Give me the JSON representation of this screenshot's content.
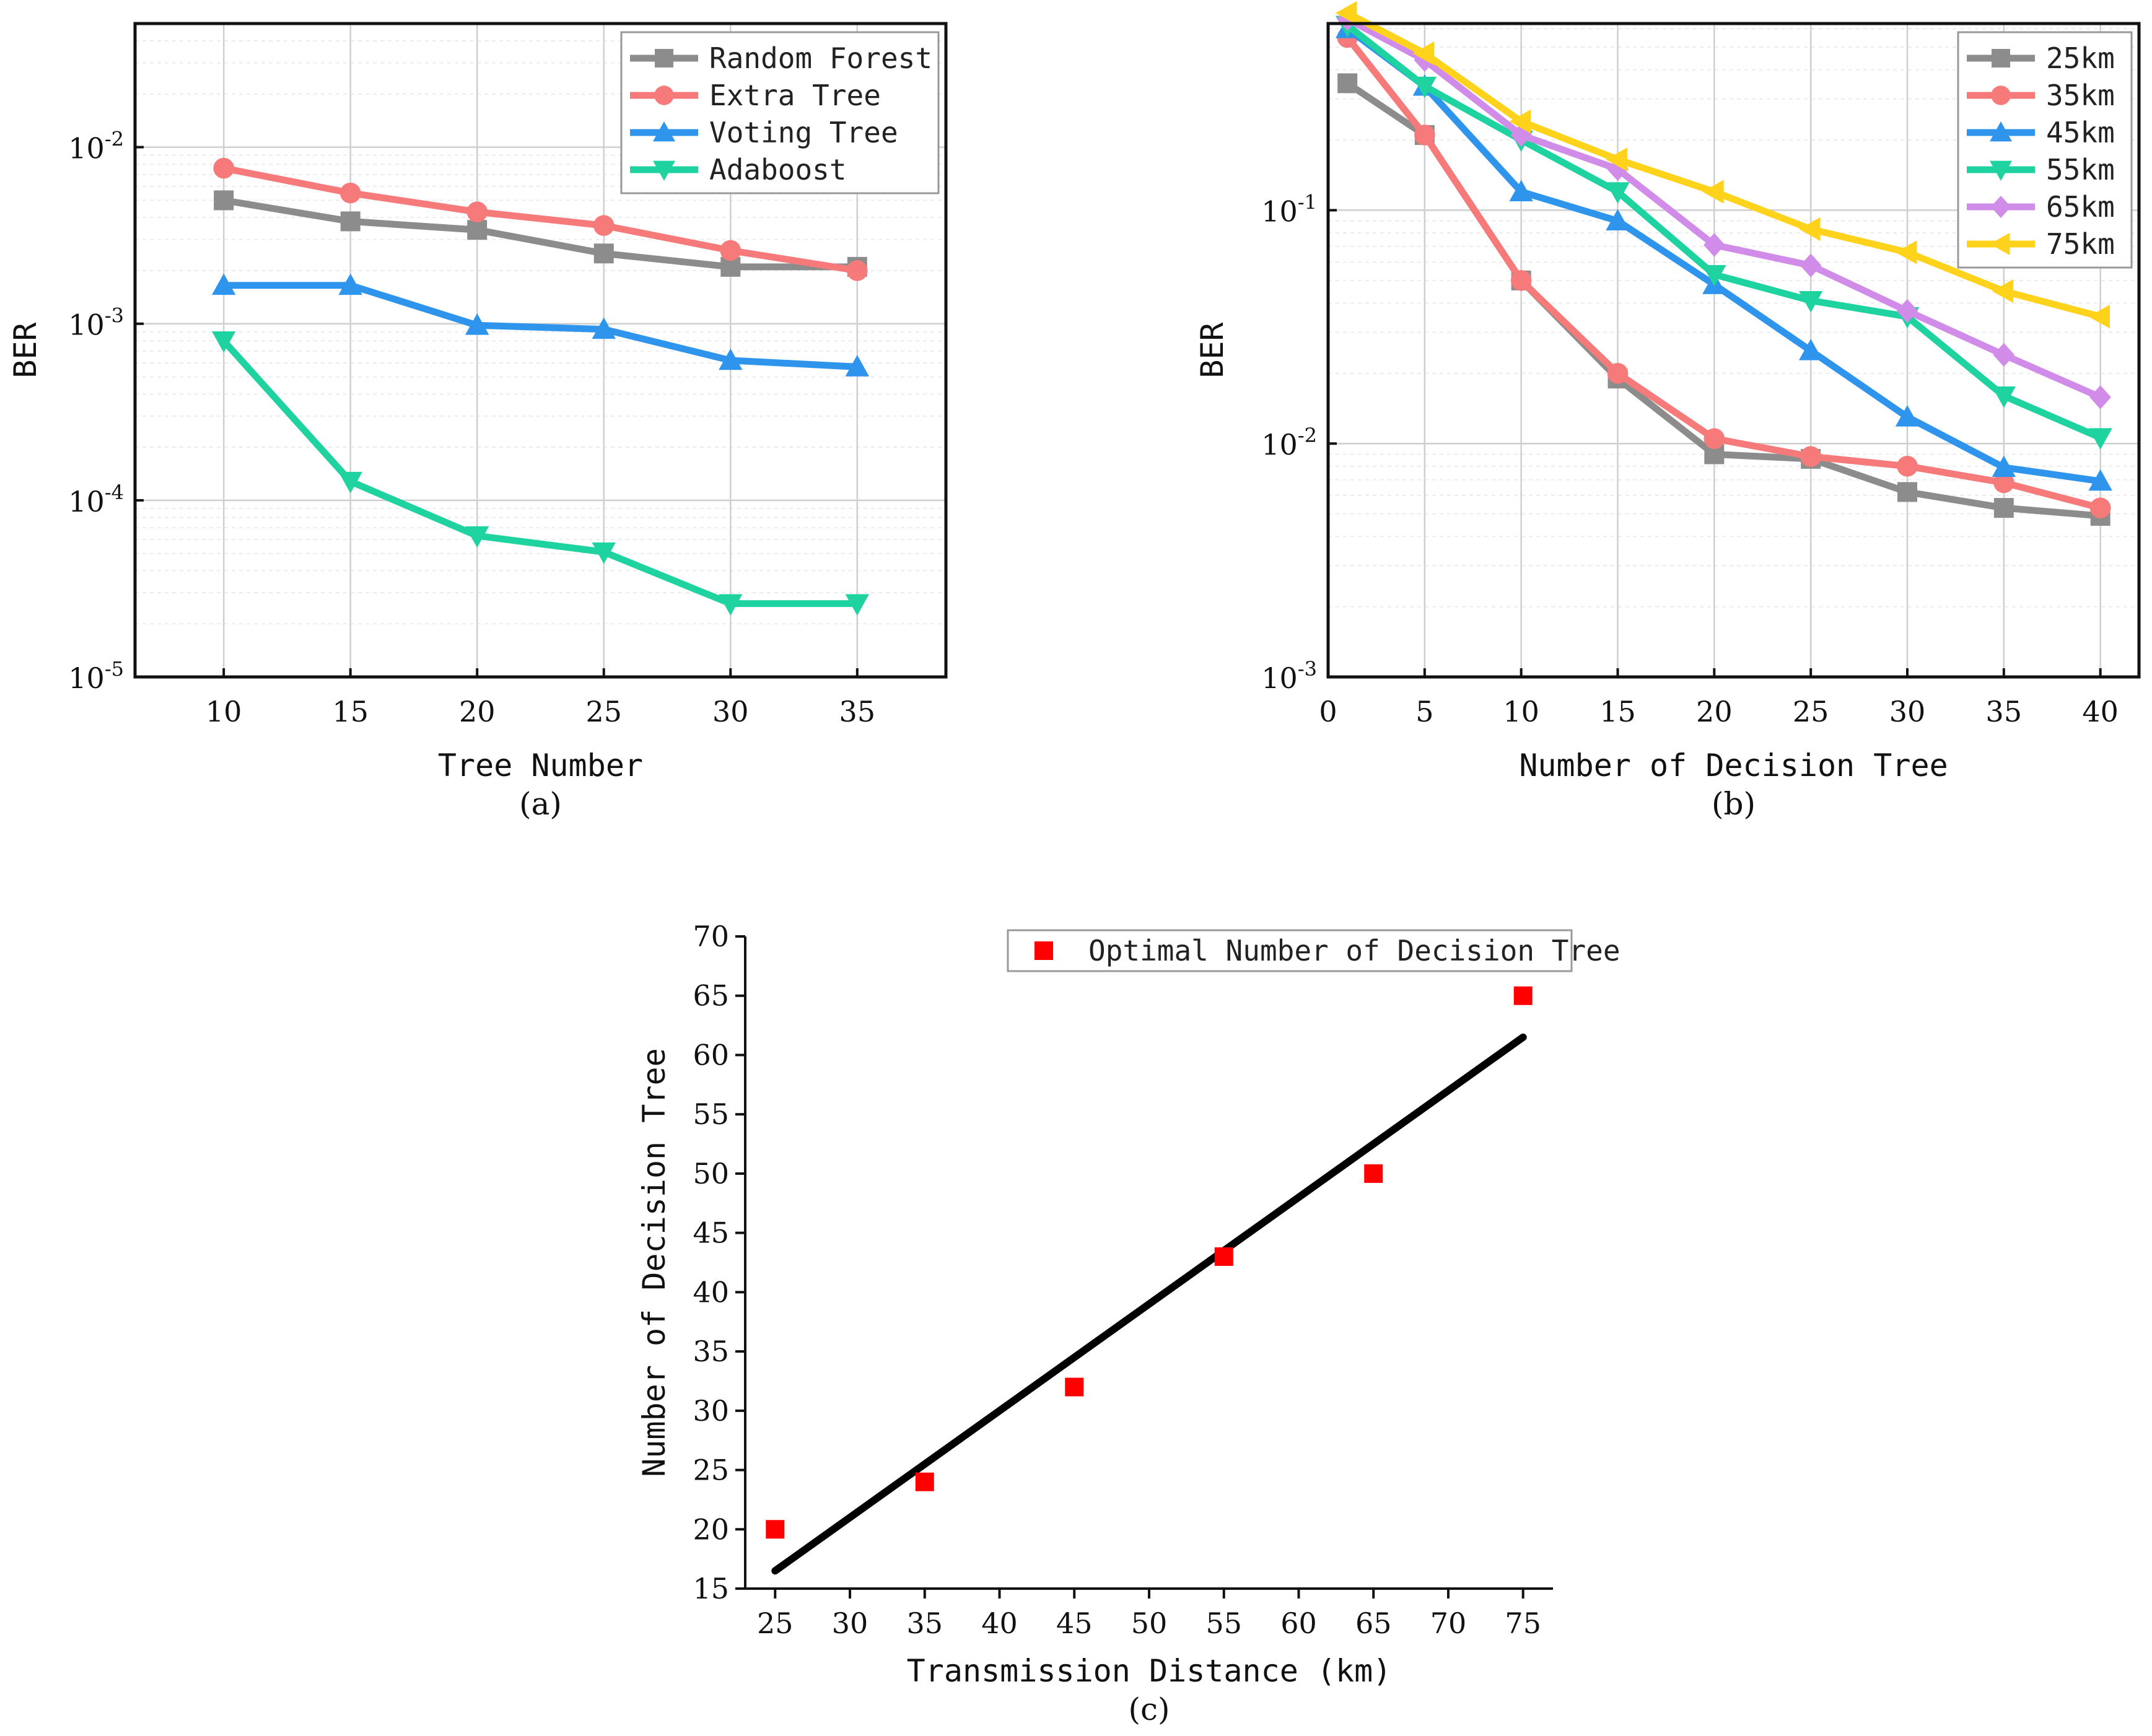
{
  "chart_data": [
    {
      "id": "a",
      "type": "line",
      "scale_y": "log",
      "xlabel": "Tree Number",
      "ylabel": "BER",
      "caption": "(a)",
      "x": [
        10,
        15,
        20,
        25,
        30,
        35
      ],
      "xlim": [
        6.5,
        38.5
      ],
      "x_ticks": [
        10,
        15,
        20,
        25,
        30,
        35
      ],
      "ylim_exp": [
        -5,
        -1.3
      ],
      "y_ticks": [
        -5,
        -4,
        -3,
        -2
      ],
      "grid": true,
      "legend_position": "top-right",
      "series": [
        {
          "name": "Random Forest",
          "color": "#8c8c8c",
          "marker": "square",
          "values": [
            0.005,
            0.0038,
            0.0034,
            0.0025,
            0.0021,
            0.0021
          ]
        },
        {
          "name": "Extra Tree",
          "color": "#f77a7a",
          "marker": "circle",
          "values": [
            0.0076,
            0.0055,
            0.0043,
            0.0036,
            0.0026,
            0.002
          ]
        },
        {
          "name": "Voting Tree",
          "color": "#2f95ec",
          "marker": "triangle-up",
          "values": [
            0.00165,
            0.00165,
            0.00098,
            0.00093,
            0.00062,
            0.00057
          ]
        },
        {
          "name": "Adaboost",
          "color": "#1fd3a0",
          "marker": "triangle-down",
          "values": [
            0.0008,
            0.000128,
            6.3e-05,
            5.1e-05,
            2.6e-05,
            2.6e-05
          ]
        }
      ]
    },
    {
      "id": "b",
      "type": "line",
      "scale_y": "log",
      "xlabel": "Number of Decision Tree",
      "ylabel": "BER",
      "caption": "(b)",
      "x": [
        1,
        5,
        10,
        15,
        20,
        25,
        30,
        35,
        40
      ],
      "xlim": [
        0,
        42
      ],
      "x_ticks": [
        0,
        5,
        10,
        15,
        20,
        25,
        30,
        35,
        40
      ],
      "ylim_exp": [
        -3,
        -0.2
      ],
      "y_ticks": [
        -3,
        -2,
        -1
      ],
      "grid": true,
      "legend_position": "top-right",
      "series": [
        {
          "name": "25km",
          "color": "#8c8c8c",
          "marker": "square",
          "values": [
            0.35,
            0.21,
            0.05,
            0.019,
            0.009,
            0.0086,
            0.0062,
            0.0053,
            0.0049
          ]
        },
        {
          "name": "35km",
          "color": "#f77a7a",
          "marker": "circle",
          "values": [
            0.55,
            0.21,
            0.05,
            0.02,
            0.0105,
            0.0088,
            0.008,
            0.0068,
            0.0053
          ]
        },
        {
          "name": "45km",
          "color": "#2f95ec",
          "marker": "triangle-up",
          "values": [
            0.6,
            0.34,
            0.12,
            0.09,
            0.048,
            0.025,
            0.013,
            0.0079,
            0.0069
          ]
        },
        {
          "name": "55km",
          "color": "#1fd3a0",
          "marker": "triangle-down",
          "values": [
            0.62,
            0.34,
            0.2,
            0.12,
            0.053,
            0.041,
            0.035,
            0.016,
            0.0106
          ]
        },
        {
          "name": "65km",
          "color": "#d08ce8",
          "marker": "diamond",
          "values": [
            0.66,
            0.44,
            0.21,
            0.15,
            0.071,
            0.058,
            0.037,
            0.024,
            0.0158
          ]
        },
        {
          "name": "75km",
          "color": "#ffd21c",
          "marker": "triangle-left",
          "values": [
            0.7,
            0.47,
            0.24,
            0.165,
            0.12,
            0.083,
            0.066,
            0.045,
            0.035
          ]
        }
      ]
    },
    {
      "id": "c",
      "type": "scatter",
      "xlabel": "Transmission Distance (km)",
      "ylabel": "Number of Decision Tree",
      "caption": "(c)",
      "x": [
        25,
        35,
        45,
        55,
        65,
        75
      ],
      "values": [
        20,
        24,
        32,
        43,
        50,
        65
      ],
      "xlim": [
        23,
        77
      ],
      "ylim": [
        15,
        70
      ],
      "x_ticks": [
        25,
        30,
        35,
        40,
        45,
        50,
        55,
        60,
        65,
        70,
        75
      ],
      "y_ticks": [
        15,
        20,
        25,
        30,
        35,
        40,
        45,
        50,
        55,
        60,
        65,
        70
      ],
      "grid": false,
      "legend_position": "top-right",
      "series": [
        {
          "name": "Optimal Number of Decision Tree",
          "color": "#ff0000",
          "marker": "square"
        }
      ],
      "fit_line": {
        "color": "#000000",
        "x": [
          25,
          75
        ],
        "y": [
          16.5,
          61.5
        ]
      }
    }
  ]
}
